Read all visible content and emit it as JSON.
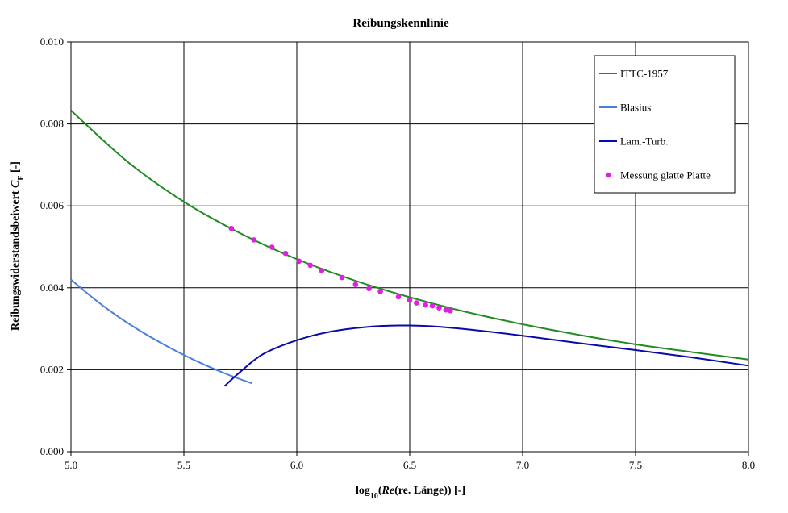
{
  "chart_data": {
    "type": "line",
    "title": "Reibungskennlinie",
    "xlabel": {
      "prefix": "log",
      "sub": "10",
      "open": "(",
      "italic": "Re",
      "rest": "(re. Länge))  [-]"
    },
    "ylabel": {
      "text": "Reibungswiderstandsbeiwert  ",
      "italic": "C",
      "sub": "F",
      "rest": " [-]"
    },
    "xlim": [
      5.0,
      8.0
    ],
    "ylim": [
      0.0,
      0.01
    ],
    "x_ticks": [
      "5.0",
      "5.5",
      "6.0",
      "6.5",
      "7.0",
      "7.5",
      "8.0"
    ],
    "y_ticks": [
      "0.000",
      "0.002",
      "0.004",
      "0.006",
      "0.008",
      "0.010"
    ],
    "grid": true,
    "legend_position": "top-right",
    "series": [
      {
        "name": "ITTC-1957",
        "kind": "line",
        "color": "#228B22",
        "x": [
          5.0,
          5.25,
          5.5,
          5.75,
          6.0,
          6.25,
          6.5,
          6.75,
          7.0,
          7.25,
          7.5,
          7.75,
          8.0
        ],
        "y": [
          0.00833,
          0.00708,
          0.0061,
          0.00533,
          0.0047,
          0.00419,
          0.00377,
          0.00341,
          0.00311,
          0.00285,
          0.00262,
          0.00243,
          0.00225
        ]
      },
      {
        "name": "Blasius",
        "kind": "line",
        "color": "#4A7FD9",
        "x": [
          5.0,
          5.1,
          5.2,
          5.3,
          5.4,
          5.5,
          5.6,
          5.7,
          5.8
        ],
        "y": [
          0.0042,
          0.00374,
          0.00333,
          0.00297,
          0.00265,
          0.00236,
          0.0021,
          0.00187,
          0.00167
        ]
      },
      {
        "name": "Lam.-Turb.",
        "kind": "line",
        "color": "#0A0AAA",
        "x": [
          5.68,
          5.75,
          5.85,
          6.0,
          6.15,
          6.3,
          6.45,
          6.6,
          6.8,
          7.0,
          7.25,
          7.5,
          7.75,
          8.0
        ],
        "y": [
          0.0016,
          0.00195,
          0.00238,
          0.00272,
          0.00293,
          0.00304,
          0.00308,
          0.00306,
          0.00296,
          0.00283,
          0.00265,
          0.00248,
          0.0023,
          0.0021
        ]
      },
      {
        "name": "Messung glatte Platte",
        "kind": "scatter",
        "color": "#E020E0",
        "x": [
          5.71,
          5.81,
          5.89,
          5.95,
          6.01,
          6.06,
          6.11,
          6.2,
          6.26,
          6.32,
          6.37,
          6.45,
          6.5,
          6.53,
          6.57,
          6.6,
          6.63,
          6.66,
          6.68
        ],
        "y": [
          0.00545,
          0.00517,
          0.00499,
          0.00484,
          0.00465,
          0.00455,
          0.00442,
          0.00425,
          0.00408,
          0.00398,
          0.00391,
          0.00378,
          0.0037,
          0.00363,
          0.00358,
          0.00356,
          0.00351,
          0.00346,
          0.00344
        ]
      }
    ]
  }
}
